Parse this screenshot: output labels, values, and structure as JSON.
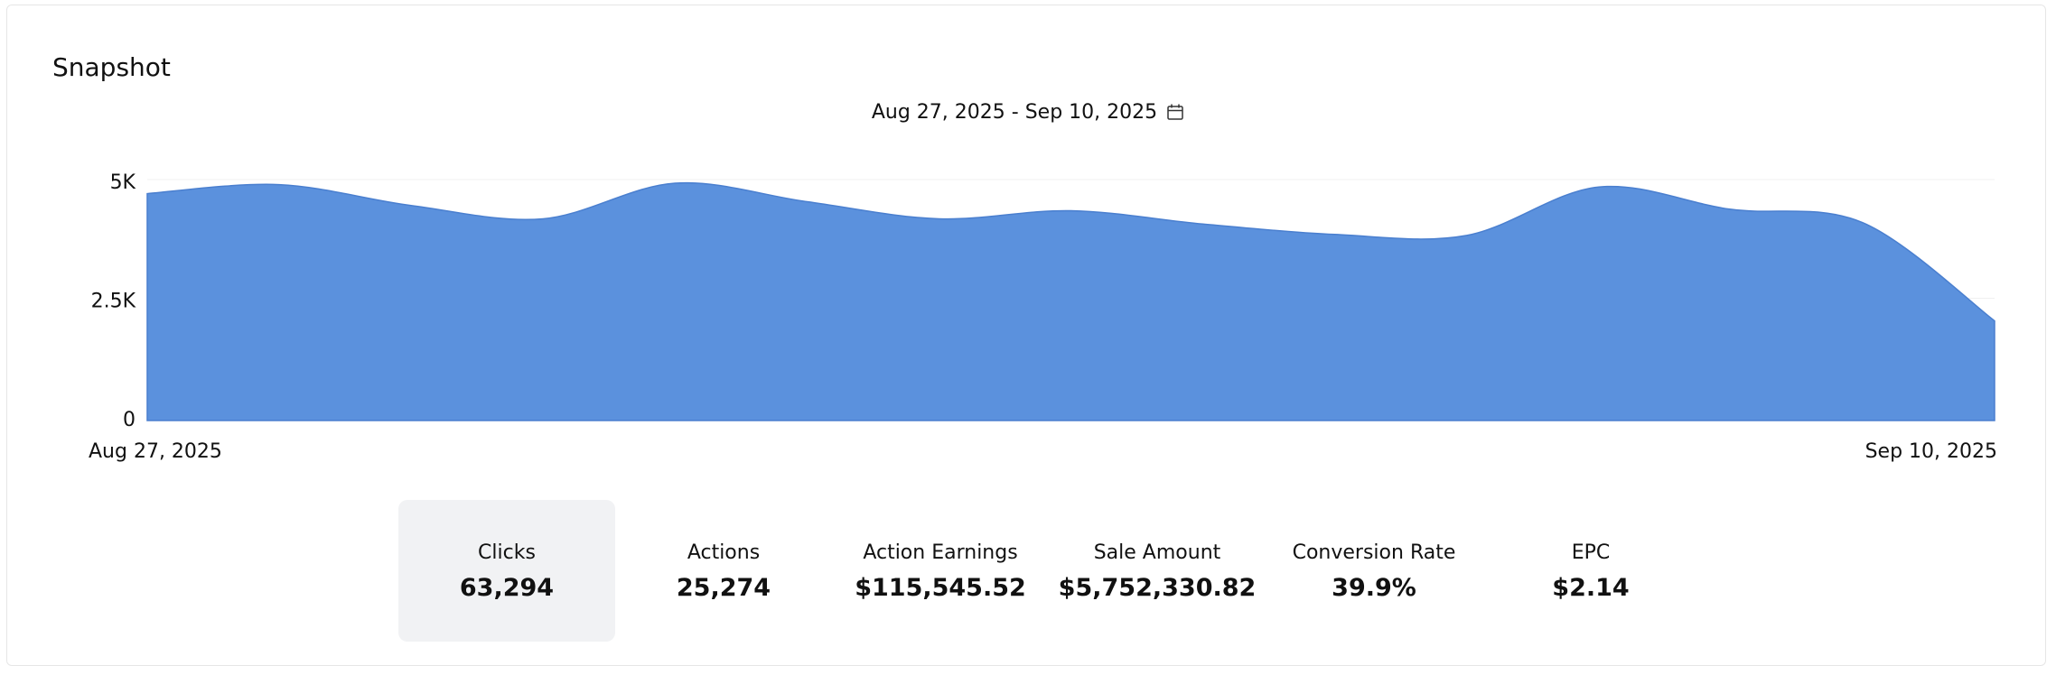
{
  "header": {
    "title": "Snapshot",
    "date_range": "Aug 27, 2025 - Sep 10, 2025"
  },
  "chart_data": {
    "type": "area",
    "categories": [
      "Aug 27, 2025",
      null,
      null,
      null,
      null,
      null,
      null,
      null,
      null,
      null,
      null,
      null,
      null,
      null,
      "Sep 10, 2025"
    ],
    "values": [
      4780,
      4970,
      4530,
      4250,
      5000,
      4610,
      4250,
      4420,
      4140,
      3920,
      3900,
      4920,
      4450,
      4170,
      2100
    ],
    "color": "#5b91dd",
    "ylim": [
      0,
      5000
    ],
    "yticks": [
      0,
      {
        "value": 2500,
        "label": "2.5K"
      },
      {
        "value": 5000,
        "label": "5K"
      }
    ],
    "grid": true
  },
  "metrics": [
    {
      "label": "Clicks",
      "value": "63,294"
    },
    {
      "label": "Actions",
      "value": "25,274"
    },
    {
      "label": "Action Earnings",
      "value": "$115,545.52"
    },
    {
      "label": "Sale Amount",
      "value": "$5,752,330.82"
    },
    {
      "label": "Conversion Rate",
      "value": "39.9%"
    },
    {
      "label": "EPC",
      "value": "$2.14"
    }
  ]
}
